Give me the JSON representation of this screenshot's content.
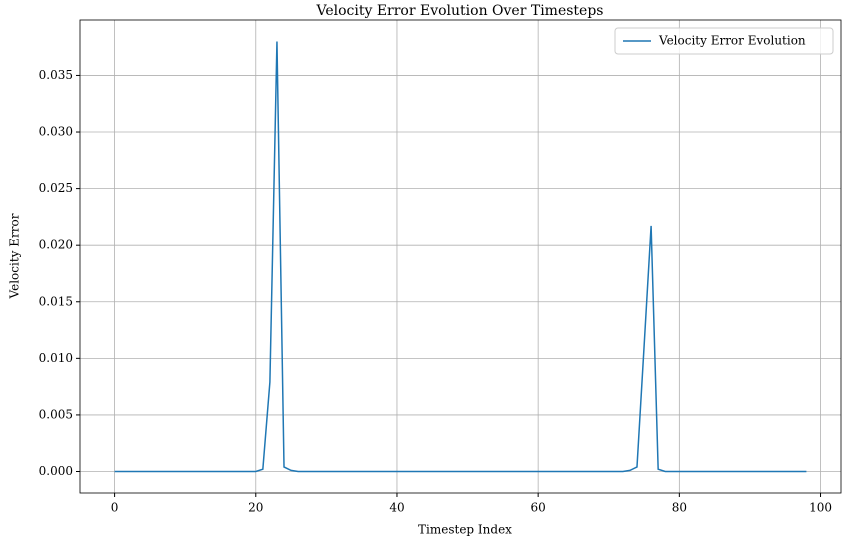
{
  "chart_data": {
    "type": "line",
    "title": "Velocity Error Evolution Over Timesteps",
    "x_label": "Timestep Index",
    "y_label": "Velocity Error",
    "x": [
      0,
      1,
      2,
      3,
      4,
      5,
      6,
      7,
      8,
      9,
      10,
      11,
      12,
      13,
      14,
      15,
      16,
      17,
      18,
      19,
      20,
      21,
      22,
      23,
      24,
      25,
      26,
      27,
      28,
      29,
      30,
      31,
      32,
      33,
      34,
      35,
      36,
      37,
      38,
      39,
      40,
      41,
      42,
      43,
      44,
      45,
      46,
      47,
      48,
      49,
      50,
      51,
      52,
      53,
      54,
      55,
      56,
      57,
      58,
      59,
      60,
      61,
      62,
      63,
      64,
      65,
      66,
      67,
      68,
      69,
      70,
      71,
      72,
      73,
      74,
      75,
      76,
      77,
      78,
      79,
      80,
      81,
      82,
      83,
      84,
      85,
      86,
      87,
      88,
      89,
      90,
      91,
      92,
      93,
      94,
      95,
      96,
      97,
      98
    ],
    "series": [
      {
        "name": "Velocity Error Evolution",
        "color": "#1f77b4",
        "values": [
          0,
          0,
          0,
          0,
          0,
          0,
          0,
          0,
          0,
          0,
          0,
          0,
          0,
          0,
          0,
          0,
          0,
          0,
          0,
          0,
          0,
          0.0002,
          0.0079,
          0.038,
          0.0004,
          0.0001,
          0,
          0,
          0,
          0,
          0,
          0,
          0,
          0,
          0,
          0,
          0,
          0,
          0,
          0,
          0,
          0,
          0,
          0,
          0,
          0,
          0,
          0,
          0,
          0,
          0,
          0,
          0,
          0,
          0,
          0,
          0,
          0,
          0,
          0,
          0,
          0,
          0,
          0,
          0,
          0,
          0,
          0,
          0,
          0,
          0,
          0,
          0,
          0.0001,
          0.0004,
          0.011,
          0.0217,
          0.0002,
          0,
          0,
          0,
          0,
          0,
          0,
          0,
          0,
          0,
          0,
          0,
          0,
          0,
          0,
          0,
          0,
          0,
          0,
          0,
          0,
          0
        ]
      }
    ],
    "xlim": [
      -4.9,
      102.9
    ],
    "ylim": [
      -0.0019,
      0.0399
    ],
    "xticks": [
      0,
      20,
      40,
      60,
      80,
      100
    ],
    "yticks": [
      {
        "value": 0,
        "label": "0.000"
      },
      {
        "value": 0.005,
        "label": "0.005"
      },
      {
        "value": 0.01,
        "label": "0.010"
      },
      {
        "value": 0.015,
        "label": "0.015"
      },
      {
        "value": 0.02,
        "label": "0.020"
      },
      {
        "value": 0.025,
        "label": "0.025"
      },
      {
        "value": 0.03,
        "label": "0.030"
      },
      {
        "value": 0.035,
        "label": "0.035"
      }
    ],
    "grid": true,
    "legend": "upper right"
  }
}
